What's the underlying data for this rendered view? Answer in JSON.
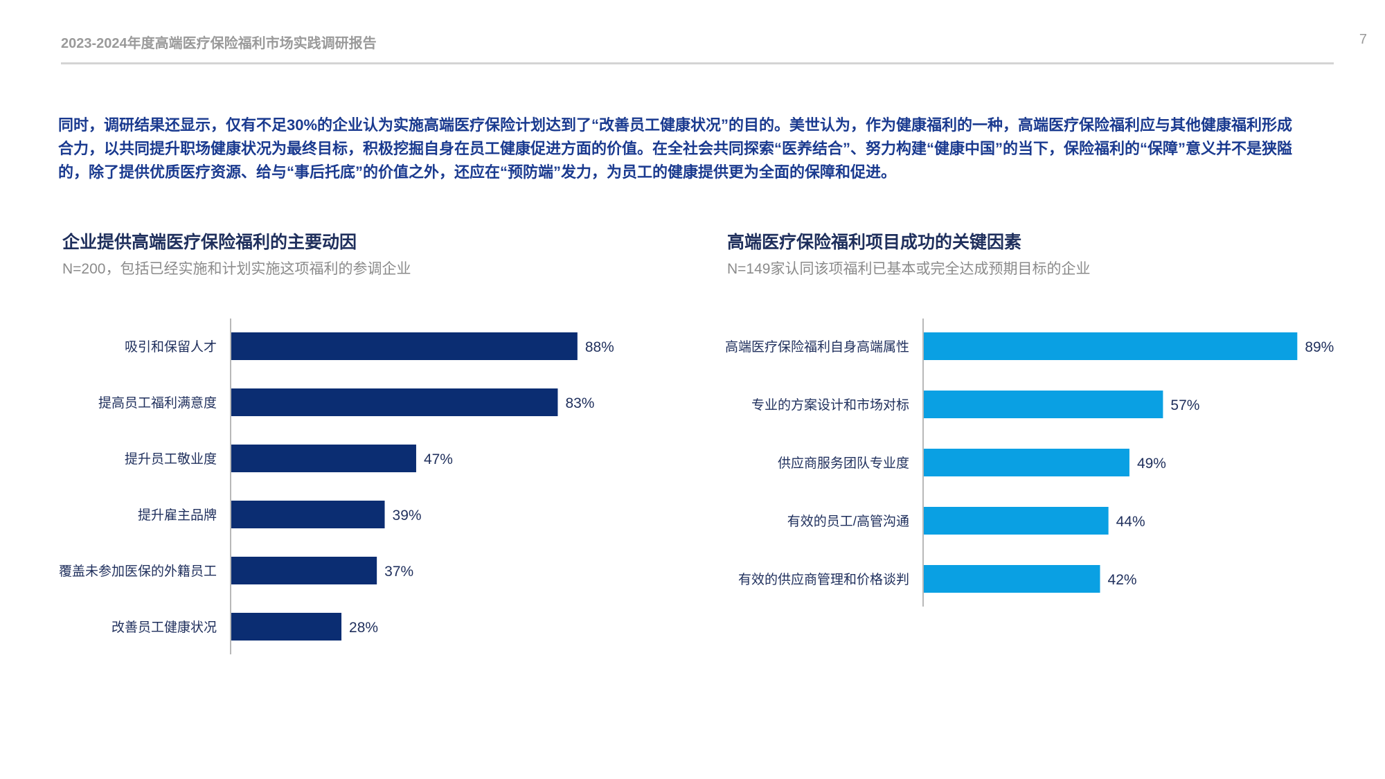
{
  "header": {
    "title": "2023-2024年度高端医疗保险福利市场实践调研报告",
    "page_number": "7"
  },
  "intro_text": "同时，调研结果还显示，仅有不足30%的企业认为实施高端医疗保险计划达到了“改善员工健康状况”的目的。美世认为，作为健康福利的一种，高端医疗保险福利应与其他健康福利形成合力，以共同提升职场健康状况为最终目标，积极挖掘自身在员工健康促进方面的价值。在全社会共同探索“医养结合”、努力构建“健康中国”的当下，保险福利的“保障”意义并不是狭隘的，除了提供优质医疗资源、给与“事后托底”的价值之外，还应在“预防端”发力，为员工的健康提供更为全面的保障和促进。",
  "colors": {
    "left_bar": "#0b2d72",
    "right_bar": "#0aa0e3",
    "text": "#1f2f5c",
    "intro": "#1a3a8f",
    "muted": "#8b8b8b"
  },
  "chart_data": [
    {
      "type": "bar",
      "orientation": "horizontal",
      "title": "企业提供高端医疗保险福利的主要动因",
      "subtitle": "N=200，包括已经实施和计划实施这项福利的参调企业",
      "categories": [
        "吸引和保留人才",
        "提高员工福利满意度",
        "提升员工敬业度",
        "提升雇主品牌",
        "覆盖未参加医保的外籍员工",
        "改善员工健康状况"
      ],
      "values": [
        88,
        83,
        47,
        39,
        37,
        28
      ],
      "value_labels": [
        "88%",
        "83%",
        "47%",
        "39%",
        "37%",
        "28%"
      ],
      "xlim": [
        0,
        100
      ],
      "grid": false
    },
    {
      "type": "bar",
      "orientation": "horizontal",
      "title": "高端医疗保险福利项目成功的关键因素",
      "subtitle": "N=149家认同该项福利已基本或完全达成预期目标的企业",
      "categories": [
        "高端医疗保险福利自身高端属性",
        "专业的方案设计和市场对标",
        "供应商服务团队专业度",
        "有效的员工/高管沟通",
        "有效的供应商管理和价格谈判"
      ],
      "values": [
        89,
        57,
        49,
        44,
        42
      ],
      "value_labels": [
        "89%",
        "57%",
        "49%",
        "44%",
        "42%"
      ],
      "xlim": [
        0,
        100
      ],
      "grid": false
    }
  ]
}
